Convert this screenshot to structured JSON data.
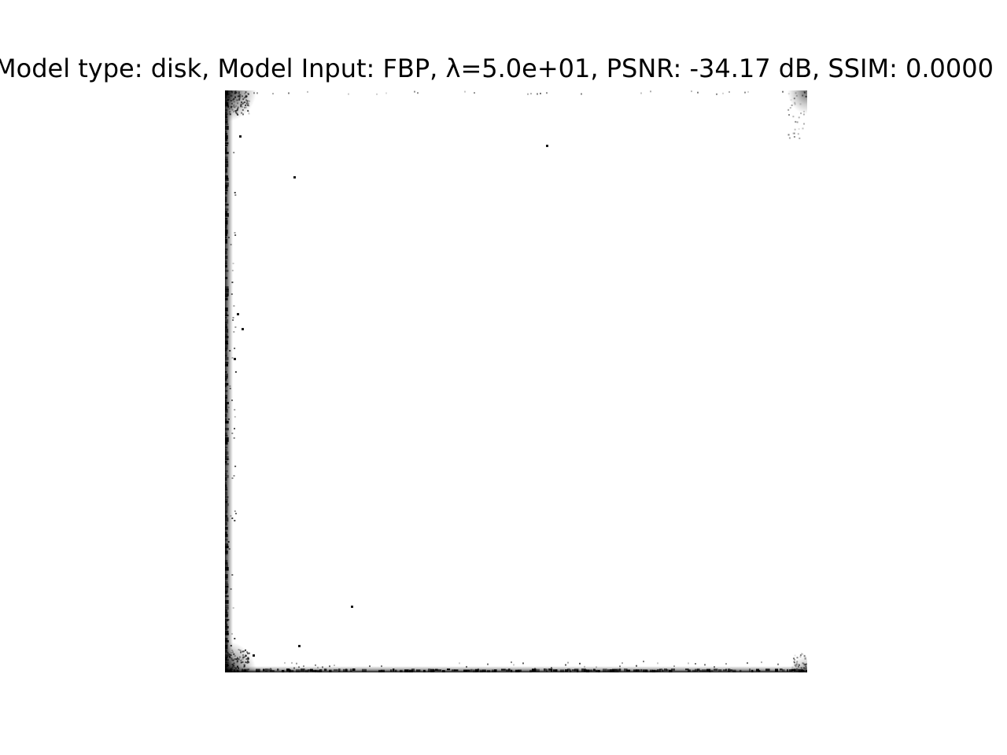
{
  "figure": {
    "title": "Model type: disk, Model Input: FBP, λ=5.0e+01, PSNR: -34.17 dB, SSIM: 0.0000"
  },
  "image": {
    "colormap": "gray",
    "background_color": "#ffffff",
    "artifact_color": "#000000"
  }
}
